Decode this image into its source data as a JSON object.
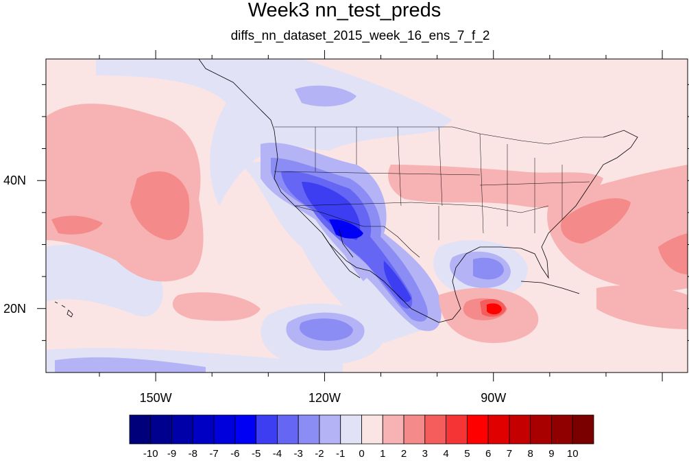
{
  "title": "Week3 nn_test_preds",
  "subtitle": "diffs_nn_dataset_2015_week_16_ens_7_f_2",
  "map": {
    "lon_range": [
      -169.5,
      -55.5
    ],
    "lat_range": [
      10,
      59
    ],
    "lon_labels": [
      {
        "lon": -150,
        "text": "150W"
      },
      {
        "lon": -120,
        "text": "120W"
      },
      {
        "lon": -90,
        "text": "90W"
      }
    ],
    "lat_labels": [
      {
        "lat": 40,
        "text": "40N"
      },
      {
        "lat": 20,
        "text": "20N"
      }
    ]
  },
  "colorbar": {
    "colors": [
      "#00007a",
      "#00008f",
      "#0000a8",
      "#0000c4",
      "#0000dc",
      "#0000f5",
      "#3d3df2",
      "#6666f5",
      "#8c8cf5",
      "#b3b3f5",
      "#e2e2f7",
      "#fbe4e4",
      "#f7b3b3",
      "#f58a8a",
      "#f55c5c",
      "#f53535",
      "#ff0000",
      "#e00000",
      "#c40000",
      "#a80000",
      "#900000",
      "#7a0000"
    ],
    "labels": [
      "-10",
      "-9",
      "-8",
      "-7",
      "-6",
      "-5",
      "-4",
      "-3",
      "-2",
      "-1",
      "0",
      "1",
      "2",
      "3",
      "4",
      "5",
      "6",
      "7",
      "8",
      "9",
      "10"
    ]
  }
}
